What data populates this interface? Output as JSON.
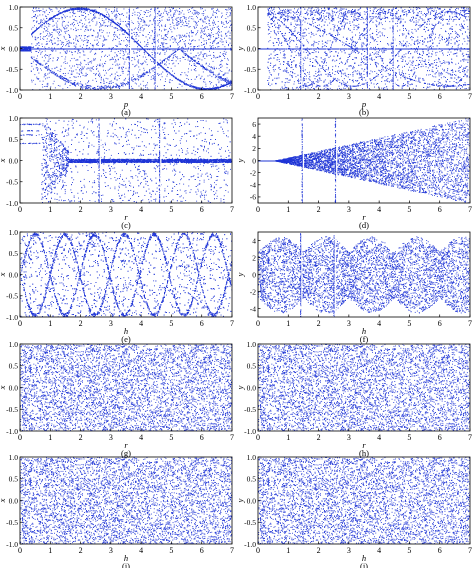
{
  "figure": {
    "dot_color": "#1f35d6",
    "axis_color": "#000000"
  },
  "chart_data": [
    {
      "id": "a",
      "caption": "(a)",
      "type": "scatter",
      "style": "bifurcation-x",
      "xlabel": "p",
      "ylabel": "x",
      "xlim": [
        0,
        7
      ],
      "ylim": [
        -1.0,
        1.0
      ],
      "xticks": [
        "0",
        "1",
        "2",
        "3",
        "4",
        "5",
        "6",
        "7"
      ],
      "yticks": [
        "-1.0",
        "-0.5",
        "0.0",
        "0.5",
        "1.0"
      ],
      "vlines": [
        3.6,
        4.45
      ]
    },
    {
      "id": "b",
      "caption": "(b)",
      "type": "scatter",
      "style": "bifurcation-y",
      "xlabel": "p",
      "ylabel": "y",
      "xlim": [
        0,
        7
      ],
      "ylim": [
        -1.0,
        1.0
      ],
      "xticks": [
        "0",
        "1",
        "2",
        "3",
        "4",
        "5",
        "6",
        "7"
      ],
      "yticks": [
        "-1.0",
        "-0.5",
        "0.0",
        "0.5",
        "1.0"
      ],
      "vlines": [
        1.4,
        3.6,
        4.45
      ]
    },
    {
      "id": "c",
      "caption": "(c)",
      "type": "scatter",
      "style": "bifurcation-r",
      "xlabel": "r",
      "ylabel": "x",
      "xlim": [
        0,
        7
      ],
      "ylim": [
        -1.0,
        1.0
      ],
      "xticks": [
        "0",
        "1",
        "2",
        "3",
        "4",
        "5",
        "6",
        "7"
      ],
      "yticks": [
        "-1.0",
        "-0.5",
        "0.0",
        "0.5",
        "1.0"
      ],
      "vlines": [
        2.6,
        4.6
      ]
    },
    {
      "id": "d",
      "caption": "(d)",
      "type": "scatter",
      "style": "cone",
      "xlabel": "r",
      "ylabel": "y",
      "xlim": [
        0,
        7
      ],
      "ylim": [
        -7,
        7
      ],
      "xticks": [
        "0",
        "1",
        "2",
        "3",
        "4",
        "5",
        "6",
        "7"
      ],
      "yticks": [
        "-6",
        "-4",
        "-2",
        "0",
        "2",
        "4",
        "6"
      ],
      "vlines": [
        1.45,
        2.55
      ]
    },
    {
      "id": "e",
      "caption": "(e)",
      "type": "scatter",
      "style": "lens",
      "xlabel": "h",
      "ylabel": "x",
      "xlim": [
        0,
        7
      ],
      "ylim": [
        -1.0,
        1.0
      ],
      "xticks": [
        "0",
        "1",
        "2",
        "3",
        "4",
        "5",
        "6",
        "7"
      ],
      "yticks": [
        "-1.0",
        "-0.5",
        "0.0",
        "0.5",
        "1.0"
      ],
      "vlines": []
    },
    {
      "id": "f",
      "caption": "(f)",
      "type": "scatter",
      "style": "streaks",
      "xlabel": "h",
      "ylabel": "y",
      "xlim": [
        0,
        7
      ],
      "ylim": [
        -5,
        5
      ],
      "xticks": [
        "0",
        "1",
        "2",
        "3",
        "4",
        "5",
        "6",
        "7"
      ],
      "yticks": [
        "-4",
        "-2",
        "0",
        "2",
        "4"
      ],
      "vlines": [
        1.4,
        2.5
      ]
    },
    {
      "id": "g",
      "caption": "(g)",
      "type": "scatter",
      "style": "uniform",
      "xlabel": "r",
      "ylabel": "x",
      "xlim": [
        0,
        7
      ],
      "ylim": [
        -1.0,
        1.0
      ],
      "xticks": [
        "0",
        "1",
        "2",
        "3",
        "4",
        "5",
        "6",
        "7"
      ],
      "yticks": [
        "-1.0",
        "-0.5",
        "0.0",
        "0.5",
        "1.0"
      ],
      "vlines": []
    },
    {
      "id": "h",
      "caption": "(h)",
      "type": "scatter",
      "style": "uniform",
      "xlabel": "r",
      "ylabel": "y",
      "xlim": [
        0,
        7
      ],
      "ylim": [
        -1.0,
        1.0
      ],
      "xticks": [
        "0",
        "1",
        "2",
        "3",
        "4",
        "5",
        "6",
        "7"
      ],
      "yticks": [
        "-1.0",
        "-0.5",
        "0.0",
        "0.5",
        "1.0"
      ],
      "vlines": []
    },
    {
      "id": "i",
      "caption": "(i)",
      "type": "scatter",
      "style": "uniform",
      "xlabel": "h",
      "ylabel": "x",
      "xlim": [
        0,
        7
      ],
      "ylim": [
        -1.0,
        1.0
      ],
      "xticks": [
        "0",
        "1",
        "2",
        "3",
        "4",
        "5",
        "6",
        "7"
      ],
      "yticks": [
        "-1.0",
        "-0.5",
        "0.0",
        "0.5",
        "1.0"
      ],
      "vlines": []
    },
    {
      "id": "j",
      "caption": "(j)",
      "type": "scatter",
      "style": "uniform",
      "xlabel": "h",
      "ylabel": "y",
      "xlim": [
        0,
        7
      ],
      "ylim": [
        -1.0,
        1.0
      ],
      "xticks": [
        "0",
        "1",
        "2",
        "3",
        "4",
        "5",
        "6",
        "7"
      ],
      "yticks": [
        "-1.0",
        "-0.5",
        "0.0",
        "0.5",
        "1.0"
      ],
      "vlines": []
    }
  ]
}
